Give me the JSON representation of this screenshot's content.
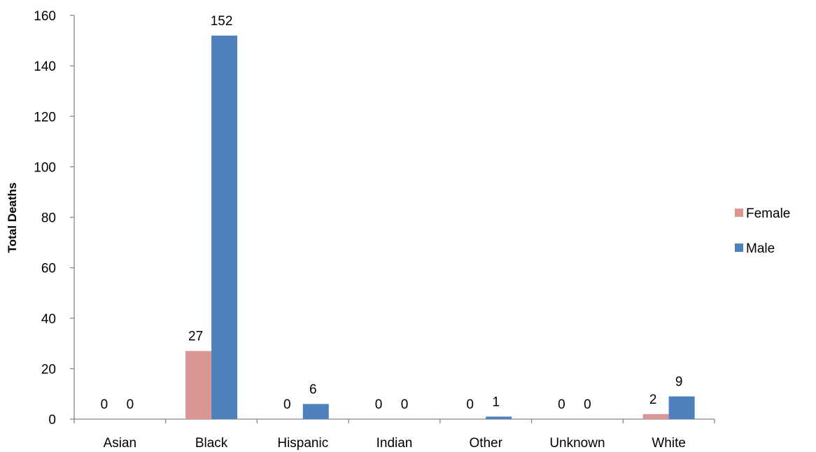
{
  "chart_data": {
    "type": "bar",
    "title": "",
    "xlabel": "",
    "ylabel": "Total Deaths",
    "categories": [
      "Asian",
      "Black",
      "Hispanic",
      "Indian",
      "Other",
      "Unknown",
      "White"
    ],
    "series": [
      {
        "name": "Female",
        "color": "#d99694",
        "values": [
          0,
          27,
          0,
          0,
          0,
          0,
          2
        ]
      },
      {
        "name": "Male",
        "color": "#4f81bd",
        "values": [
          0,
          152,
          6,
          0,
          1,
          0,
          9
        ]
      }
    ],
    "ylim": [
      0,
      160
    ],
    "yticks": [
      0,
      20,
      40,
      60,
      80,
      100,
      120,
      140,
      160
    ],
    "grid": false,
    "legend_position": "right"
  }
}
